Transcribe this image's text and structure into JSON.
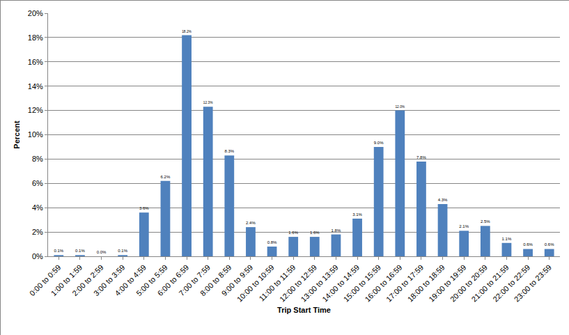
{
  "chart_data": {
    "type": "bar",
    "x_label": "Trip Start Time",
    "y_label": "Percent",
    "categories": [
      "0:00 to 0:59",
      "1:00 to 1:59",
      "2:00 to 2:59",
      "3:00 to 3:59",
      "4:00 to 4:59",
      "5:00 to 5:59",
      "6:00 to 6:59",
      "7:00 to 7:59",
      "8:00 to 8:59",
      "9:00 to 9:59",
      "10:00 to 10:59",
      "11:00 to 11:59",
      "12:00 to 12:59",
      "13:00 to 13:59",
      "14:00 to 14:59",
      "15:00 to 15:59",
      "16:00 to 16:59",
      "17:00 to 17:59",
      "18:00 to 18:59",
      "19:00 to 19:59",
      "20:00 to 20:59",
      "21:00 to 21:59",
      "22:00 to 22:59",
      "23:00 to 23:59"
    ],
    "values": [
      0.1,
      0.1,
      0.0,
      0.1,
      3.6,
      6.2,
      18.2,
      12.3,
      8.3,
      2.4,
      0.8,
      1.6,
      1.6,
      1.8,
      3.1,
      9.0,
      12.0,
      7.8,
      4.3,
      2.1,
      2.5,
      1.1,
      0.6,
      0.6
    ],
    "value_labels": [
      "0.1%",
      "0.1%",
      "0.0%",
      "0.1%",
      "3.6%",
      "6.2%",
      "18.2%",
      "12.3%",
      "8.3%",
      "2.4%",
      "0.8%",
      "1.6%",
      "1.6%",
      "1.8%",
      "3.1%",
      "9.0%",
      "12.0%",
      "7.8%",
      "4.3%",
      "2.1%",
      "2.5%",
      "1.1%",
      "0.6%",
      "0.6%"
    ],
    "color": "#4f81bd",
    "ylim": [
      0,
      20
    ],
    "yticks": [
      {
        "value": 0,
        "label": "0%"
      },
      {
        "value": 2,
        "label": "2%"
      },
      {
        "value": 4,
        "label": "4%"
      },
      {
        "value": 6,
        "label": "6%"
      },
      {
        "value": 8,
        "label": "8%"
      },
      {
        "value": 10,
        "label": "10%"
      },
      {
        "value": 12,
        "label": "12%"
      },
      {
        "value": 14,
        "label": "14%"
      },
      {
        "value": 16,
        "label": "16%"
      },
      {
        "value": 18,
        "label": "18%"
      },
      {
        "value": 20,
        "label": "20%"
      }
    ],
    "grid": true,
    "data_labels": true
  }
}
